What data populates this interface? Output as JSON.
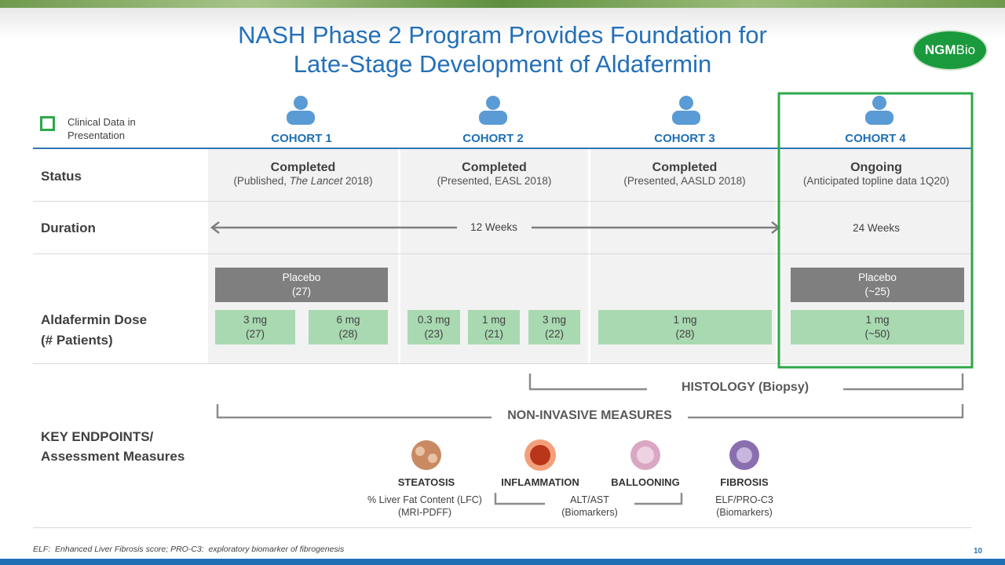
{
  "header": {
    "title_lines": [
      "NASH Phase 2 Program Provides Foundation for",
      "Late-Stage Development of Aldafermin"
    ],
    "logo": {
      "main": "NGM",
      "suffix": "Bio"
    }
  },
  "legend": {
    "lines": [
      "Clinical Data in",
      "Presentation"
    ]
  },
  "row_labels": {
    "status": "Status",
    "duration": "Duration",
    "dose": [
      "Aldafermin Dose",
      "(# Patients)"
    ]
  },
  "cohorts": [
    {
      "name": "COHORT 1",
      "status": "Completed",
      "detail": [
        "(Published, ",
        "The Lancet",
        " 2018)"
      ],
      "doses": [
        {
          "label": "Placebo",
          "n": "(27)"
        },
        {
          "label": "3 mg",
          "n": "(27)"
        },
        {
          "label": "6 mg",
          "n": "(28)"
        }
      ]
    },
    {
      "name": "COHORT 2",
      "status": "Completed",
      "detail": [
        "(Presented, EASL 2018)"
      ],
      "doses": [
        {
          "label": "0.3 mg",
          "n": "(23)"
        },
        {
          "label": "1 mg",
          "n": "(21)"
        },
        {
          "label": "3 mg",
          "n": "(22)"
        }
      ]
    },
    {
      "name": "COHORT 3",
      "status": "Completed",
      "detail": [
        "(Presented, AASLD 2018)"
      ],
      "doses": [
        {
          "label": "1 mg",
          "n": "(28)"
        }
      ]
    },
    {
      "name": "COHORT 4",
      "status": "Ongoing",
      "detail": [
        "(Anticipated topline data 1Q20)"
      ],
      "doses": [
        {
          "label": "Placebo",
          "n": "(~25)"
        },
        {
          "label": "1 mg",
          "n": "(~50)"
        }
      ]
    }
  ],
  "duration": {
    "cohorts_1_3": "12 Weeks",
    "cohort_4": "24 Weeks"
  },
  "endpoints": {
    "label": [
      "KEY ENDPOINTS/",
      "Assessment Measures"
    ],
    "histology": "HISTOLOGY (Biopsy)",
    "non_invasive": "NON-INVASIVE MEASURES",
    "features": [
      "STEATOSIS",
      "INFLAMMATION",
      "BALLOONING",
      "FIBROSIS"
    ],
    "measures": [
      [
        "% Liver Fat Content (LFC)",
        "(MRI-PDFF)"
      ],
      [
        "ALT/AST",
        "(Biomarkers)"
      ],
      [
        "ELF/PRO-C3",
        "(Biomarkers)"
      ]
    ]
  },
  "footnote": "ELF:  Enhanced Liver Fibrosis score; PRO-C3:  exploratory biomarker of fibrogenesis",
  "page_number": "10"
}
